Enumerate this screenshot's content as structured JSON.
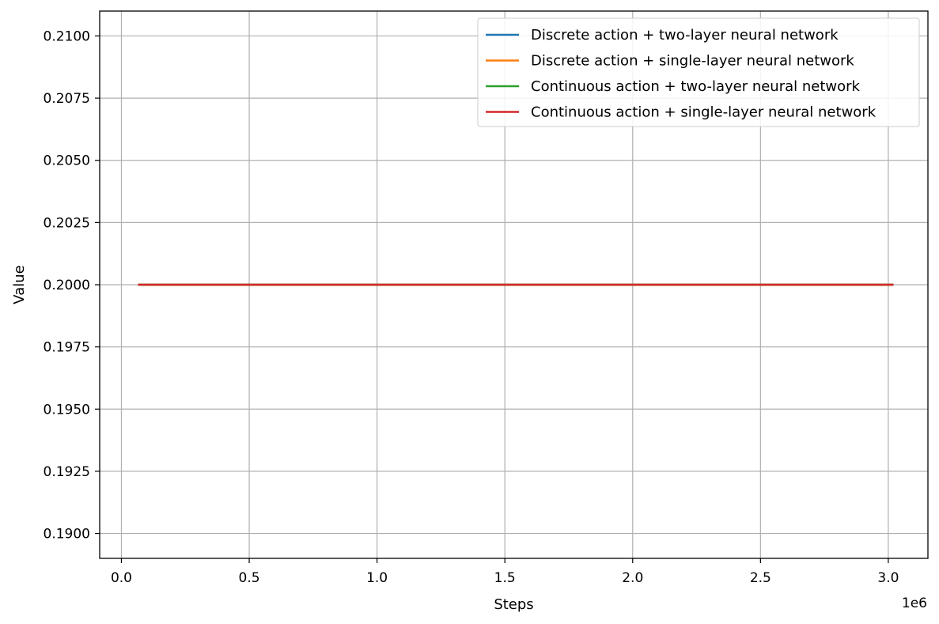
{
  "chart_data": {
    "type": "line",
    "title": "",
    "xlabel": "Steps",
    "ylabel": "Value",
    "x_offset_label": "1e6",
    "xlim": [
      -0.085,
      3.155
    ],
    "ylim": [
      0.189,
      0.211
    ],
    "x_ticks": [
      0.0,
      0.5,
      1.0,
      1.5,
      2.0,
      2.5,
      3.0
    ],
    "x_tick_labels": [
      "0.0",
      "0.5",
      "1.0",
      "1.5",
      "2.0",
      "2.5",
      "3.0"
    ],
    "y_ticks": [
      0.19,
      0.1925,
      0.195,
      0.1975,
      0.2,
      0.2025,
      0.205,
      0.2075,
      0.21
    ],
    "y_tick_labels": [
      "0.1900",
      "0.1925",
      "0.1950",
      "0.1975",
      "0.2000",
      "0.2025",
      "0.2050",
      "0.2075",
      "0.2100"
    ],
    "grid": true,
    "legend_position": "top-right",
    "series": [
      {
        "name": "Discrete action + two-layer neural network",
        "color": "#1f77b4",
        "x": [
          0.065,
          3.02
        ],
        "y": [
          0.2,
          0.2
        ]
      },
      {
        "name": "Discrete action + single-layer neural network",
        "color": "#ff7f0e",
        "x": [
          0.065,
          3.02
        ],
        "y": [
          0.2,
          0.2
        ]
      },
      {
        "name": "Continuous action + two-layer neural network",
        "color": "#2ca02c",
        "x": [
          0.065,
          3.02
        ],
        "y": [
          0.2,
          0.2
        ]
      },
      {
        "name": "Continuous action + single-layer neural network",
        "color": "#d62728",
        "x": [
          0.065,
          3.02
        ],
        "y": [
          0.2,
          0.2
        ]
      }
    ]
  }
}
